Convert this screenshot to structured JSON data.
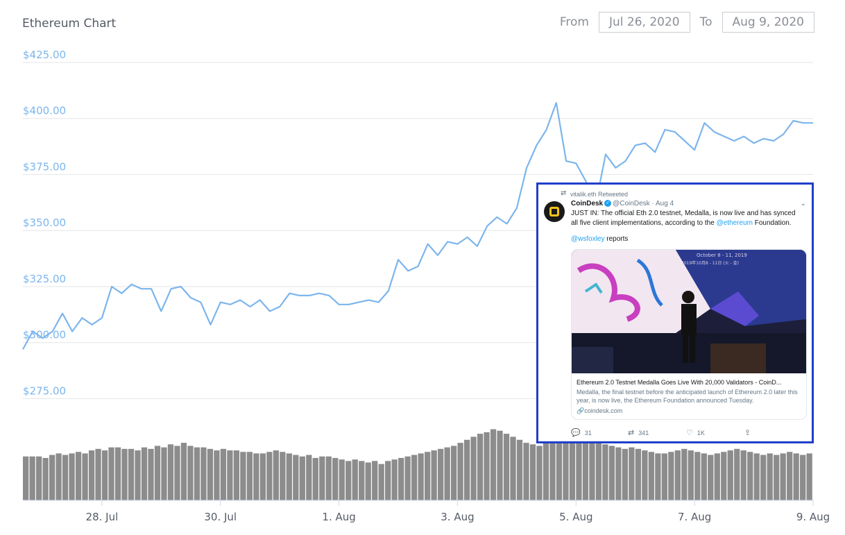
{
  "header": {
    "title": "Ethereum Chart",
    "from_label": "From",
    "from_value": "Jul 26, 2020",
    "to_label": "To",
    "to_value": "Aug 9, 2020"
  },
  "colors": {
    "price_line": "#7cb5ec",
    "volume_bar": "#8c8c8c",
    "grid": "#e6e6e6",
    "axis_label": "#7cb5ec",
    "tweet_border": "#1f3fc9",
    "tweet_link": "#1da1f2"
  },
  "chart_data": {
    "type": "line",
    "title": "Ethereum Chart",
    "xlabel": "",
    "ylabel": "",
    "y_ticks": [
      "$275.00",
      "$300.00",
      "$325.00",
      "$350.00",
      "$375.00",
      "$400.00",
      "$425.00"
    ],
    "y_tick_values": [
      275,
      300,
      325,
      350,
      375,
      400,
      425
    ],
    "ylim": [
      264,
      425
    ],
    "x_ticks": [
      "28. Jul",
      "30. Jul",
      "1. Aug",
      "3. Aug",
      "5. Aug",
      "7. Aug",
      "9. Aug"
    ],
    "x_tick_values": [
      "2020-07-28",
      "2020-07-30",
      "2020-08-01",
      "2020-08-03",
      "2020-08-05",
      "2020-08-07",
      "2020-08-09"
    ],
    "xlim": [
      "2020-07-26 16:00",
      "2020-08-09 00:00"
    ],
    "grid": true,
    "series": [
      {
        "kind": "price",
        "points": [
          [
            "2020-07-26 16:00",
            297
          ],
          [
            "2020-07-26 20:00",
            305
          ],
          [
            "2020-07-27 00:00",
            302
          ],
          [
            "2020-07-27 04:00",
            305
          ],
          [
            "2020-07-27 08:00",
            313
          ],
          [
            "2020-07-27 12:00",
            305
          ],
          [
            "2020-07-27 16:00",
            311
          ],
          [
            "2020-07-27 20:00",
            308
          ],
          [
            "2020-07-28 00:00",
            311
          ],
          [
            "2020-07-28 04:00",
            325
          ],
          [
            "2020-07-28 08:00",
            322
          ],
          [
            "2020-07-28 12:00",
            326
          ],
          [
            "2020-07-28 16:00",
            324
          ],
          [
            "2020-07-28 20:00",
            324
          ],
          [
            "2020-07-29 00:00",
            314
          ],
          [
            "2020-07-29 04:00",
            324
          ],
          [
            "2020-07-29 08:00",
            325
          ],
          [
            "2020-07-29 12:00",
            320
          ],
          [
            "2020-07-29 16:00",
            318
          ],
          [
            "2020-07-29 20:00",
            308
          ],
          [
            "2020-07-30 00:00",
            318
          ],
          [
            "2020-07-30 04:00",
            317
          ],
          [
            "2020-07-30 08:00",
            319
          ],
          [
            "2020-07-30 12:00",
            316
          ],
          [
            "2020-07-30 16:00",
            319
          ],
          [
            "2020-07-30 20:00",
            314
          ],
          [
            "2020-07-31 00:00",
            316
          ],
          [
            "2020-07-31 04:00",
            322
          ],
          [
            "2020-07-31 08:00",
            321
          ],
          [
            "2020-07-31 12:00",
            321
          ],
          [
            "2020-07-31 16:00",
            322
          ],
          [
            "2020-07-31 20:00",
            321
          ],
          [
            "2020-08-01 00:00",
            317
          ],
          [
            "2020-08-01 04:00",
            317
          ],
          [
            "2020-08-01 08:00",
            318
          ],
          [
            "2020-08-01 12:00",
            319
          ],
          [
            "2020-08-01 16:00",
            318
          ],
          [
            "2020-08-01 20:00",
            323
          ],
          [
            "2020-08-02 00:00",
            337
          ],
          [
            "2020-08-02 04:00",
            332
          ],
          [
            "2020-08-02 08:00",
            334
          ],
          [
            "2020-08-02 12:00",
            344
          ],
          [
            "2020-08-02 16:00",
            339
          ],
          [
            "2020-08-02 20:00",
            345
          ],
          [
            "2020-08-03 00:00",
            344
          ],
          [
            "2020-08-03 04:00",
            347
          ],
          [
            "2020-08-03 08:00",
            343
          ],
          [
            "2020-08-03 12:00",
            352
          ],
          [
            "2020-08-03 16:00",
            356
          ],
          [
            "2020-08-03 20:00",
            353
          ],
          [
            "2020-08-04 00:00",
            360
          ],
          [
            "2020-08-04 04:00",
            378
          ],
          [
            "2020-08-04 08:00",
            388
          ],
          [
            "2020-08-04 12:00",
            395
          ],
          [
            "2020-08-04 16:00",
            407
          ],
          [
            "2020-08-04 20:00",
            381
          ],
          [
            "2020-08-05 00:00",
            380
          ],
          [
            "2020-08-05 04:00",
            372
          ],
          [
            "2020-08-05 08:00",
            362
          ],
          [
            "2020-08-05 12:00",
            384
          ],
          [
            "2020-08-05 16:00",
            378
          ],
          [
            "2020-08-05 20:00",
            381
          ],
          [
            "2020-08-06 00:00",
            388
          ],
          [
            "2020-08-06 04:00",
            389
          ],
          [
            "2020-08-06 08:00",
            385
          ],
          [
            "2020-08-06 12:00",
            395
          ],
          [
            "2020-08-06 16:00",
            394
          ],
          [
            "2020-08-06 20:00",
            390
          ],
          [
            "2020-08-07 00:00",
            386
          ],
          [
            "2020-08-07 04:00",
            398
          ],
          [
            "2020-08-07 08:00",
            394
          ],
          [
            "2020-08-07 12:00",
            392
          ],
          [
            "2020-08-07 16:00",
            390
          ],
          [
            "2020-08-07 20:00",
            392
          ],
          [
            "2020-08-08 00:00",
            389
          ],
          [
            "2020-08-08 04:00",
            391
          ],
          [
            "2020-08-08 08:00",
            390
          ],
          [
            "2020-08-08 12:00",
            393
          ],
          [
            "2020-08-08 16:00",
            399
          ],
          [
            "2020-08-08 20:00",
            398
          ],
          [
            "2020-08-09 00:00",
            398
          ]
        ]
      },
      {
        "kind": "volume",
        "values": [
          29,
          29,
          29,
          28,
          30,
          31,
          30,
          31,
          32,
          31,
          33,
          34,
          33,
          35,
          35,
          34,
          34,
          33,
          35,
          34,
          36,
          35,
          37,
          36,
          38,
          36,
          35,
          35,
          34,
          33,
          34,
          33,
          33,
          32,
          32,
          31,
          31,
          32,
          33,
          32,
          31,
          30,
          29,
          30,
          28,
          29,
          29,
          28,
          27,
          26,
          27,
          26,
          25,
          26,
          24,
          26,
          27,
          28,
          29,
          30,
          31,
          32,
          33,
          34,
          35,
          36,
          38,
          40,
          42,
          44,
          45,
          47,
          46,
          44,
          42,
          40,
          38,
          37,
          36,
          38,
          39,
          40,
          41,
          40,
          40,
          39,
          38,
          38,
          37,
          36,
          35,
          34,
          35,
          34,
          33,
          32,
          31,
          31,
          32,
          33,
          34,
          33,
          32,
          31,
          30,
          31,
          32,
          33,
          34,
          33,
          32,
          31,
          30,
          31,
          30,
          31,
          32,
          31,
          30,
          31
        ]
      }
    ]
  },
  "tweet": {
    "retweeted_by": "vitalik.eth Retweeted",
    "author_name": "CoinDesk",
    "author_handle": "@CoinDesk",
    "date": "· Aug 4",
    "text_before": "JUST IN: The official Eth 2.0 testnet, Medalla, is now live and has synced all five client implementations, according to the",
    "mention_1": "@ethereum",
    "text_after": "Foundation.",
    "mention_2": "@wsfoxley",
    "reports": "reports",
    "card_image_text": "October 8 - 11, 2019",
    "card_image_subtext": "2019年10月8 - 11日 (火 - 金)",
    "card_title": "Ethereum 2.0 Testnet Medalla Goes Live With 20,000 Validators - CoinD...",
    "card_desc": "Medalla, the final testnet before the anticipated launch of Ethereum 2.0 later this year, is now live, the Ethereum Foundation announced Tuesday.",
    "card_domain": "coindesk.com",
    "reply_count": "31",
    "retweet_count": "341",
    "like_count": "1K"
  }
}
